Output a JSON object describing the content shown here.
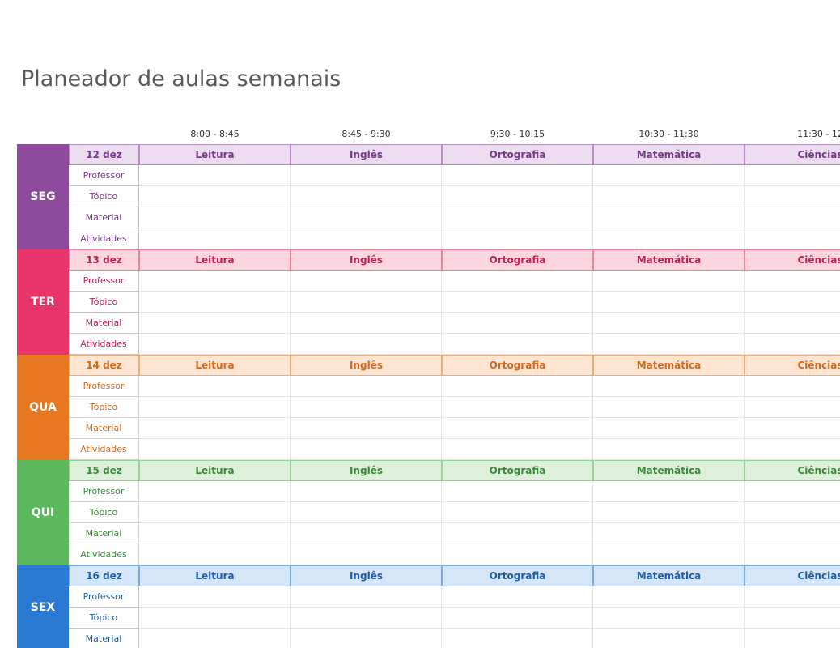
{
  "title": "Planeador de aulas semanais",
  "time_slots": [
    "8:00 - 8:45",
    "8:45 - 9:30",
    "9:30 - 10:15",
    "10:30 - 11:30",
    "11:30 - 12"
  ],
  "days": [
    {
      "name": "SEG",
      "date": "12 dez",
      "color": "#8e4a9c",
      "light": "#ecdcf0",
      "text": "#7a3a8a",
      "subjects": [
        "Leitura",
        "Inglês",
        "Ortografia",
        "Matemática",
        "Ciências"
      ],
      "rows": [
        "Professor",
        "Tópico",
        "Material",
        "Atividades"
      ]
    },
    {
      "name": "TER",
      "date": "13 dez",
      "color": "#e8336b",
      "light": "#fbd6e1",
      "text": "#c0224f",
      "subjects": [
        "Leitura",
        "Inglês",
        "Ortografia",
        "Matemática",
        "Ciências"
      ],
      "rows": [
        "Professor",
        "Tópico",
        "Material",
        "Atividades"
      ]
    },
    {
      "name": "QUA",
      "date": "14 dez",
      "color": "#e87722",
      "light": "#fde5d2",
      "text": "#d2691e",
      "subjects": [
        "Leitura",
        "Inglês",
        "Ortografia",
        "Matemática",
        "Ciências"
      ],
      "rows": [
        "Professor",
        "Tópico",
        "Material",
        "Atividades"
      ]
    },
    {
      "name": "QUI",
      "date": "15 dez",
      "color": "#5cb85c",
      "light": "#ddf0da",
      "text": "#3a8a3a",
      "subjects": [
        "Leitura",
        "Inglês",
        "Ortografia",
        "Matemática",
        "Ciências"
      ],
      "rows": [
        "Professor",
        "Tópico",
        "Material",
        "Atividades"
      ]
    },
    {
      "name": "SEX",
      "date": "16 dez",
      "color": "#2a7ad4",
      "light": "#d5e6f9",
      "text": "#1f5ea8",
      "subjects": [
        "Leitura",
        "Inglês",
        "Ortografia",
        "Matemática",
        "Ciências"
      ],
      "rows": [
        "Professor",
        "Tópico",
        "Material"
      ]
    }
  ]
}
